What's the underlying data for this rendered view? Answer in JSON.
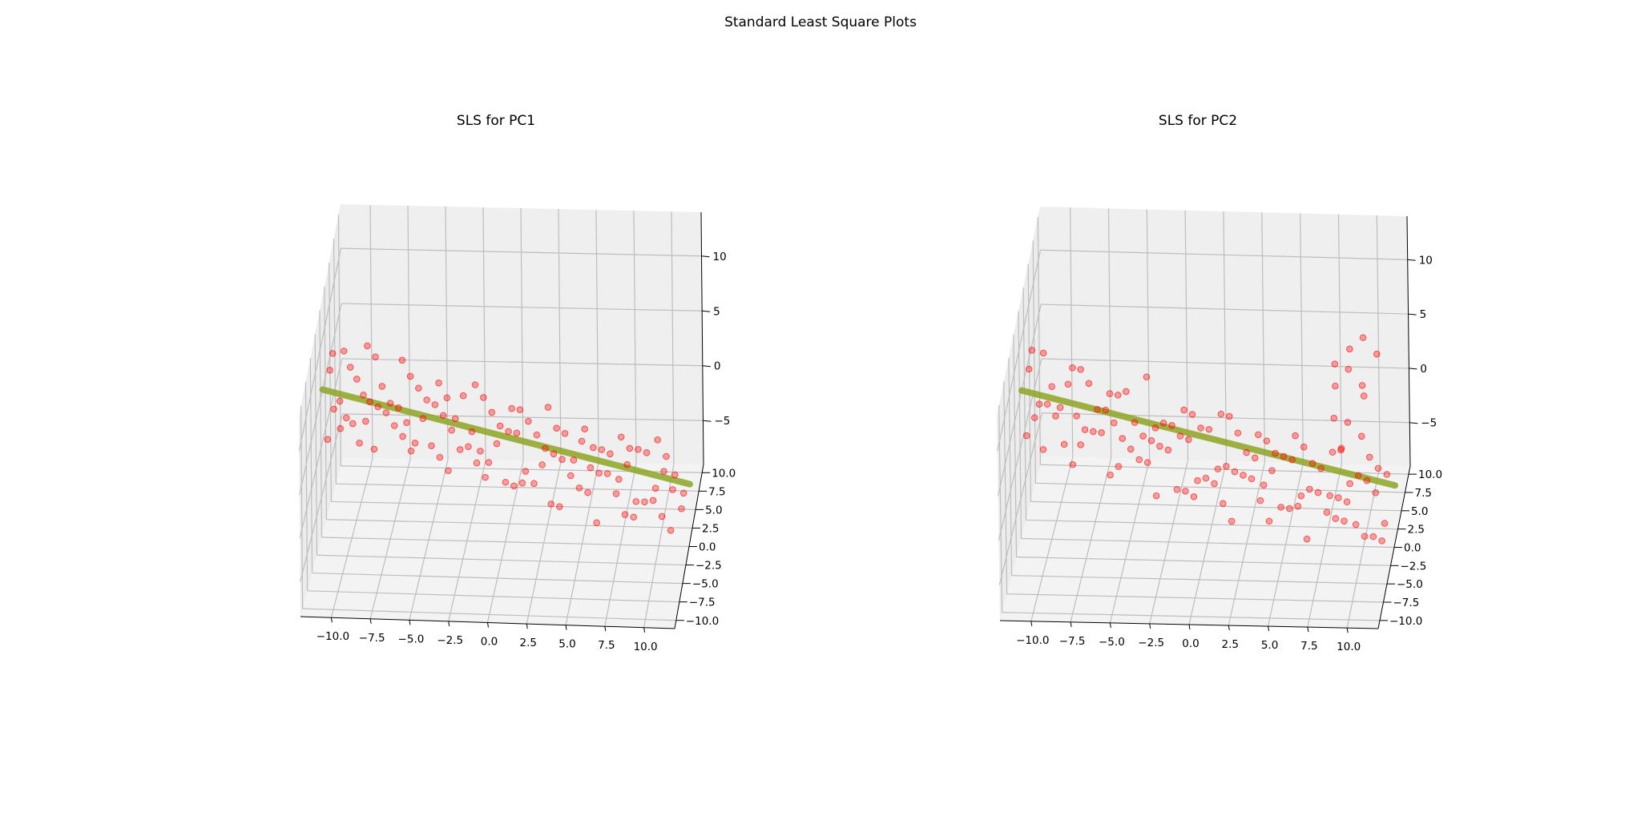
{
  "figure": {
    "title": "Standard Least Square Plots"
  },
  "chart_data": [
    {
      "type": "scatter",
      "title": "SLS for PC1",
      "xlim": [
        -11,
        11
      ],
      "ylim": [
        -10,
        10
      ],
      "zlim": [
        -9,
        14
      ],
      "x_ticks": [
        "−10.0",
        "−7.5",
        "−5.0",
        "−2.5",
        "0.0",
        "2.5",
        "5.0",
        "7.5",
        "10.0"
      ],
      "y_ticks": [
        "10.0",
        "7.5",
        "5.0",
        "2.5",
        "0.0",
        "−2.5",
        "−5.0",
        "−7.5",
        "−10.0"
      ],
      "z_ticks": [
        "10",
        "5",
        "0",
        "−5"
      ],
      "points_color": "#ff0000",
      "fit_line_color": "#8fa526",
      "fit_line": {
        "x": [
          -11,
          11
        ],
        "z": [
          5.0,
          -3.6
        ]
      },
      "series": [
        {
          "x": [
            -10.9,
            -10.6,
            -10.3,
            -10.1,
            -9.9,
            -9.8,
            -9.6,
            -9.4,
            -9.3,
            -9.1,
            -8.9,
            -8.8,
            -8.6,
            -8.4,
            -8.2,
            -8.1,
            -7.9,
            -7.7,
            -7.5,
            -7.3,
            -7.1,
            -6.9,
            -6.7,
            -6.5,
            -6.3,
            -6.1,
            -5.9,
            -5.7,
            -5.5,
            -5.3,
            -5.1,
            -4.9,
            -4.7,
            -4.5,
            -4.3,
            -4.1,
            -3.9,
            -3.7,
            -3.5,
            -3.3,
            -3.1,
            -2.9,
            -2.7,
            -2.5,
            -2.3,
            -2.1,
            -1.9,
            -1.7,
            -1.5,
            -1.3,
            -1.1,
            -0.9,
            -0.7,
            -0.5,
            -0.3,
            -0.1,
            0.1,
            0.3,
            0.5,
            0.7,
            0.9,
            1.1,
            1.3,
            1.5,
            1.7,
            1.9,
            2.1,
            2.3,
            2.5,
            2.7,
            2.9,
            3.1,
            3.3,
            3.5,
            3.7,
            3.9,
            4.1,
            4.3,
            4.5,
            4.7,
            4.9,
            5.1,
            5.3,
            5.5,
            5.7,
            5.9,
            6.1,
            6.3,
            6.5,
            6.7,
            6.9,
            7.1,
            7.3,
            7.5,
            7.7,
            7.9,
            8.1,
            8.3,
            8.5,
            8.7,
            8.9,
            9.1,
            9.3,
            9.5,
            9.7,
            9.9,
            10.1,
            10.3,
            10.5,
            10.7
          ],
          "z": [
            4.8,
            6.6,
            3.1,
            5.9,
            4.4,
            7.2,
            5.2,
            3.6,
            6.1,
            4.9,
            3.9,
            5.6,
            4.2,
            2.8,
            5.4,
            4.4,
            6.0,
            3.4,
            4.8,
            4.0,
            2.6,
            5.1,
            4.3,
            3.0,
            4.7,
            3.6,
            2.4,
            4.5,
            3.3,
            1.2,
            3.9,
            3.0,
            4.6,
            2.2,
            3.4,
            2.7,
            1.6,
            3.2,
            2.4,
            0.4,
            2.6,
            1.9,
            3.5,
            1.5,
            2.1,
            0.8,
            2.7,
            1.7,
            -0.3,
            1.9,
            1.1,
            -0.6,
            1.3,
            0.6,
            2.2,
            -0.1,
            0.9,
            -0.9,
            0.6,
            1.6,
            -0.4,
            0.3,
            -1.4,
            0.8,
            -0.2,
            -1.8,
            0.1,
            -0.7,
            1.0,
            -1.1,
            -0.4,
            -2.2,
            -0.8,
            -0.1,
            -1.6,
            -2.6,
            -0.9,
            -1.9,
            0.1,
            -1.3,
            -2.9,
            -1.7,
            -0.9,
            -2.3,
            -1.4,
            -3.2,
            -1.9,
            -0.6,
            -2.6,
            -3.6,
            -1.8,
            -2.9,
            -1.3,
            -3.1,
            -2.2,
            -4.2,
            -2.5,
            -1.7,
            -3.4,
            -2.8,
            -4.4,
            -2.4,
            -3.6,
            -1.9,
            -3.2,
            -4.6,
            -2.9,
            -3.8,
            -5.6,
            -4.0
          ]
        }
      ]
    },
    {
      "type": "scatter",
      "title": "SLS for PC2",
      "xlim": [
        -11,
        11
      ],
      "ylim": [
        -10,
        10
      ],
      "zlim": [
        -9,
        14
      ],
      "x_ticks": [
        "−10.0",
        "−7.5",
        "−5.0",
        "−2.5",
        "0.0",
        "2.5",
        "5.0",
        "7.5",
        "10.0"
      ],
      "y_ticks": [
        "10.0",
        "7.5",
        "5.0",
        "2.5",
        "0.0",
        "−2.5",
        "−5.0",
        "−7.5",
        "−10.0"
      ],
      "z_ticks": [
        "10",
        "5",
        "0",
        "−5"
      ],
      "points_color": "#ff0000",
      "fit_line_color": "#8fa526",
      "fit_line": {
        "x": [
          -11,
          11
        ],
        "z": [
          5.0,
          -3.6
        ]
      },
      "series": [
        {
          "x": [
            -10.9,
            -10.6,
            -10.3,
            -10.1,
            -9.9,
            -9.7,
            -9.5,
            -9.3,
            -9.1,
            -8.9,
            -8.7,
            -8.5,
            -8.3,
            -8.1,
            -7.9,
            -7.7,
            -7.5,
            -7.3,
            -7.1,
            -6.9,
            -6.7,
            -6.5,
            -6.3,
            -6.1,
            -5.9,
            -5.7,
            -5.5,
            -5.3,
            -5.1,
            -4.9,
            -4.7,
            -4.5,
            -4.3,
            -4.1,
            -3.9,
            -3.7,
            -3.5,
            -3.3,
            -3.1,
            -2.9,
            -2.7,
            -2.5,
            -2.3,
            -2.1,
            -1.9,
            -1.7,
            -1.5,
            -1.3,
            -1.1,
            -0.9,
            -0.7,
            -0.5,
            -0.3,
            -0.1,
            0.1,
            0.3,
            0.5,
            0.7,
            0.9,
            1.1,
            1.3,
            1.5,
            1.7,
            1.9,
            2.1,
            2.3,
            2.5,
            2.7,
            2.9,
            3.1,
            3.3,
            3.5,
            3.7,
            3.9,
            4.1,
            4.3,
            4.5,
            4.7,
            4.9,
            5.1,
            5.3,
            5.5,
            5.7,
            5.9,
            6.1,
            6.3,
            6.5,
            6.7,
            6.9,
            7.1,
            7.3,
            7.5,
            7.7,
            7.9,
            8.1,
            8.3,
            8.5,
            8.7,
            8.9,
            9.1,
            9.3,
            9.5,
            9.7,
            9.9,
            10.1,
            10.3,
            10.5,
            10.7,
            7.4,
            7.8,
            8.0,
            8.3,
            8.6,
            8.9,
            9.2,
            9.5,
            9.8,
            7.6,
            8.4,
            9.1
          ],
          "z": [
            5.2,
            6.8,
            3.6,
            5.8,
            4.2,
            6.4,
            3.4,
            5.1,
            4.0,
            2.2,
            4.8,
            3.6,
            5.4,
            2.8,
            4.3,
            3.1,
            1.6,
            3.8,
            2.6,
            4.6,
            2.1,
            3.3,
            1.2,
            2.9,
            4.1,
            1.9,
            2.5,
            0.6,
            3.1,
            1.8,
            2.4,
            0.9,
            1.6,
            2.9,
            0.4,
            1.4,
            -1.2,
            0.8,
            2.0,
            0.1,
            1.1,
            -0.6,
            0.7,
            1.6,
            -0.2,
            0.5,
            -1.6,
            0.2,
            1.0,
            -0.9,
            -0.3,
            -2.3,
            -0.6,
            0.4,
            -1.2,
            -0.5,
            -2.7,
            -0.9,
            0.1,
            -1.6,
            -2.1,
            -0.7,
            -1.3,
            -3.1,
            -1.8,
            -0.8,
            -2.4,
            -1.5,
            -0.3,
            -2.2,
            -3.4,
            -1.7,
            -2.6,
            -1.1,
            -3.0,
            -2.1,
            -4.0,
            -2.4,
            -1.6,
            -3.3,
            -2.7,
            -4.4,
            -2.2,
            -3.5,
            -2.9,
            -4.8,
            -3.2,
            -2.4,
            -3.9,
            -5.1,
            -3.6,
            -2.9,
            -4.5,
            -3.4,
            -5.4,
            -4.1,
            -2.8,
            -3.8,
            -5.6,
            -4.3,
            -3.5,
            -6.0,
            -4.6,
            -3.9,
            -5.2,
            -4.4,
            -6.2,
            -4.8,
            7.2,
            8.6,
            6.1,
            7.6,
            5.8,
            8.1,
            6.9,
            5.3,
            7.4,
            4.4,
            4.9,
            4.1
          ]
        }
      ]
    }
  ]
}
